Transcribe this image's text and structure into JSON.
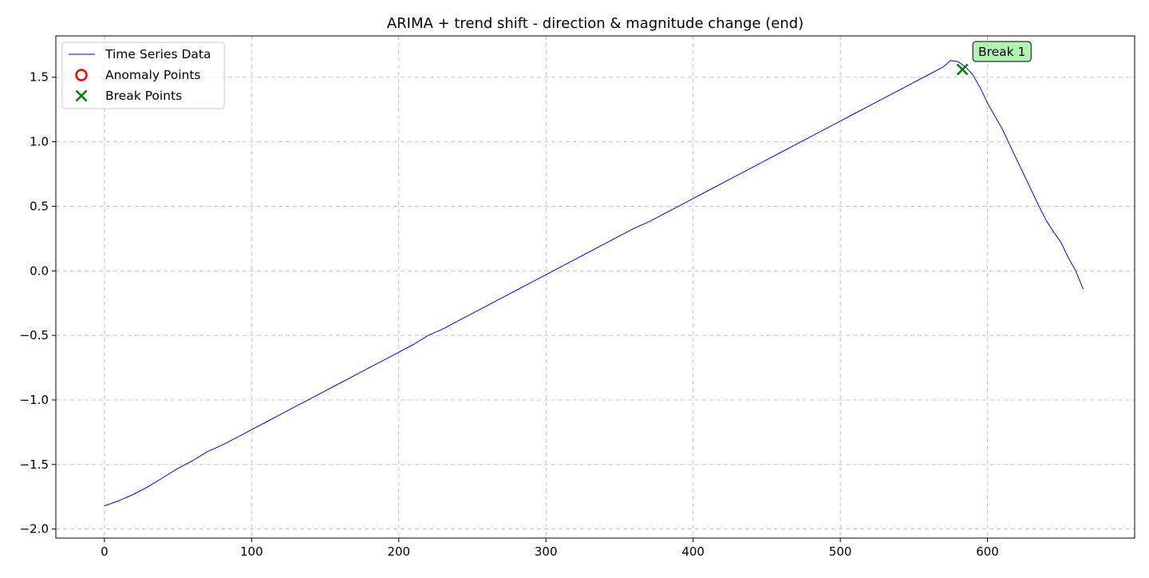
{
  "chart_data": {
    "type": "line",
    "title": "ARIMA + trend shift - direction & magnitude change (end)",
    "xlabel": "",
    "ylabel": "",
    "xlim": [
      -33,
      700
    ],
    "ylim": [
      -2.07,
      1.82
    ],
    "x_ticks": [
      0,
      100,
      200,
      300,
      400,
      500,
      600
    ],
    "x_tick_labels": [
      "0",
      "100",
      "200",
      "300",
      "400",
      "500",
      "600"
    ],
    "y_ticks": [
      -2.0,
      -1.5,
      -1.0,
      -0.5,
      0.0,
      0.5,
      1.0,
      1.5
    ],
    "y_tick_labels": [
      "−2.0",
      "−1.5",
      "−1.0",
      "−0.5",
      "0.0",
      "0.5",
      "1.0",
      "1.5"
    ],
    "grid": true,
    "legend_position": "top-left",
    "legend": [
      {
        "label": "Time Series Data",
        "marker": "line",
        "color": "#0000ff"
      },
      {
        "label": "Anomaly Points",
        "marker": "circle",
        "color": "#ff0000"
      },
      {
        "label": "Break Points",
        "marker": "x",
        "color": "#008000"
      }
    ],
    "series": [
      {
        "name": "Time Series Data",
        "color": "#0000ff",
        "x": [
          0,
          10,
          20,
          30,
          40,
          50,
          60,
          70,
          80,
          90,
          100,
          110,
          120,
          130,
          140,
          150,
          160,
          170,
          180,
          190,
          200,
          210,
          220,
          230,
          240,
          250,
          260,
          270,
          280,
          290,
          300,
          310,
          320,
          330,
          340,
          350,
          360,
          370,
          380,
          390,
          400,
          410,
          420,
          430,
          440,
          450,
          460,
          470,
          480,
          490,
          500,
          510,
          520,
          530,
          540,
          550,
          560,
          570,
          575,
          580,
          585,
          590,
          595,
          600,
          605,
          610,
          615,
          620,
          625,
          630,
          635,
          640,
          645,
          650,
          655,
          660,
          665
        ],
        "y": [
          -1.82,
          -1.78,
          -1.73,
          -1.67,
          -1.6,
          -1.53,
          -1.47,
          -1.4,
          -1.35,
          -1.29,
          -1.23,
          -1.17,
          -1.11,
          -1.05,
          -0.99,
          -0.93,
          -0.87,
          -0.81,
          -0.75,
          -0.69,
          -0.63,
          -0.57,
          -0.5,
          -0.45,
          -0.39,
          -0.33,
          -0.27,
          -0.21,
          -0.15,
          -0.09,
          -0.03,
          0.03,
          0.09,
          0.15,
          0.21,
          0.27,
          0.33,
          0.38,
          0.44,
          0.5,
          0.56,
          0.62,
          0.68,
          0.74,
          0.8,
          0.86,
          0.92,
          0.98,
          1.04,
          1.1,
          1.16,
          1.22,
          1.28,
          1.34,
          1.4,
          1.46,
          1.52,
          1.58,
          1.63,
          1.62,
          1.58,
          1.52,
          1.42,
          1.3,
          1.2,
          1.1,
          0.98,
          0.86,
          0.74,
          0.62,
          0.5,
          0.39,
          0.3,
          0.22,
          0.1,
          0.0,
          -0.14
        ]
      }
    ],
    "anomaly_points": [],
    "break_points": [
      {
        "x": 583,
        "y": 1.56
      }
    ],
    "annotations": [
      {
        "text": "Break 1",
        "x": 583,
        "y": 1.56
      }
    ]
  }
}
